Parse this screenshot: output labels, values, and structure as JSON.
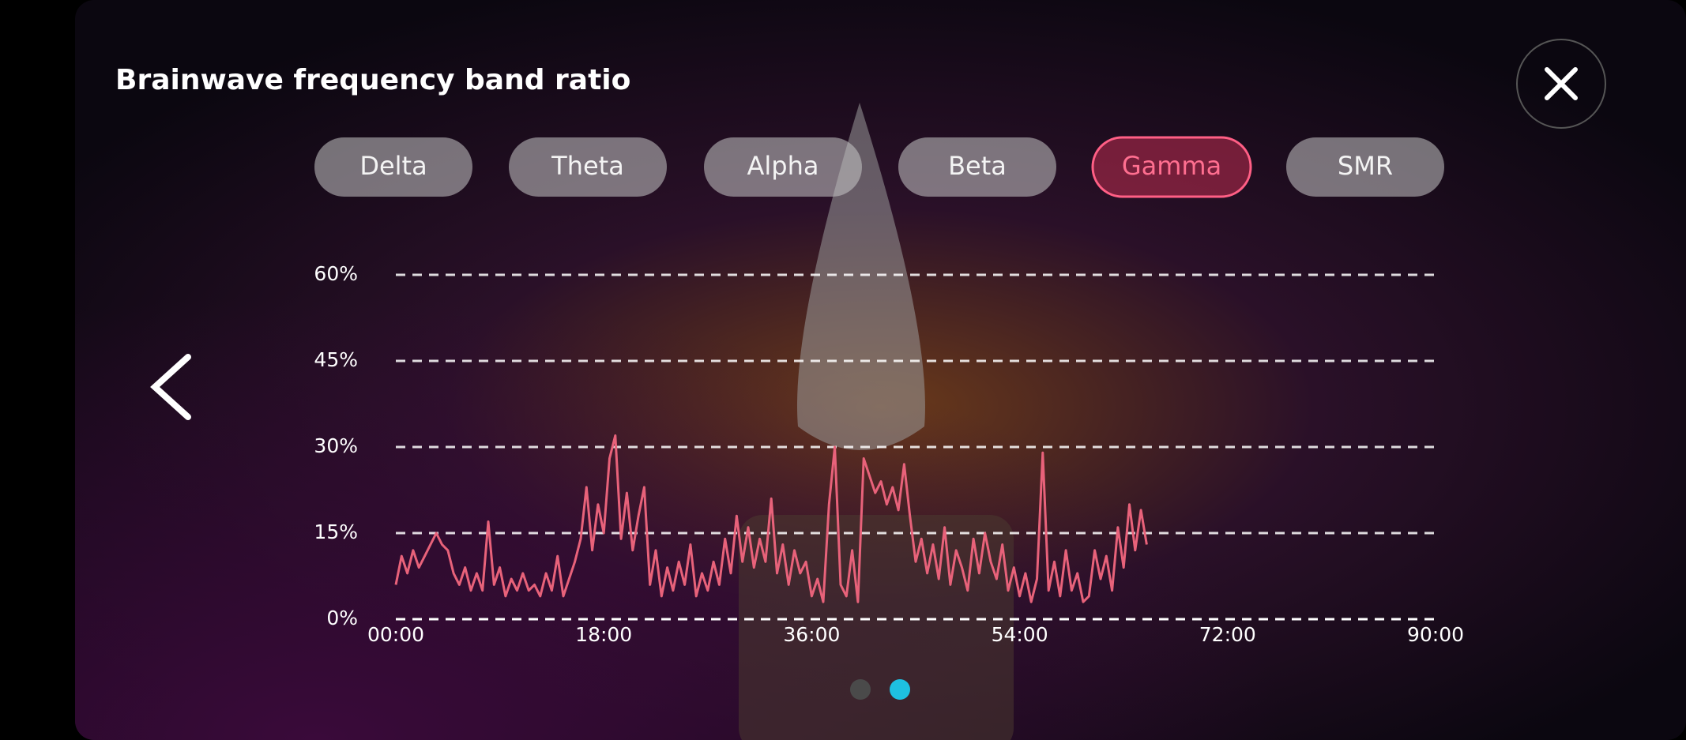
{
  "header": {
    "title": "Brainwave frequency band ratio"
  },
  "tabs": [
    {
      "label": "Delta"
    },
    {
      "label": "Theta"
    },
    {
      "label": "Alpha"
    },
    {
      "label": "Beta"
    },
    {
      "label": "Gamma",
      "selected": true
    },
    {
      "label": "SMR"
    }
  ],
  "chart_data": {
    "type": "line",
    "color": "#e8627a",
    "grid": true,
    "x": [
      0,
      0.5,
      1,
      1.5,
      2,
      2.5,
      3,
      3.5,
      4,
      4.5,
      5,
      5.5,
      6,
      6.5,
      7,
      7.5,
      8,
      8.5,
      9,
      9.5,
      10,
      10.5,
      11,
      11.5,
      12,
      12.5,
      13,
      13.5,
      14,
      14.5,
      15,
      15.5,
      16,
      16.5,
      17,
      17.5,
      18,
      18.5,
      19,
      19.5,
      20,
      20.5,
      21,
      21.5,
      22,
      22.5,
      23,
      23.5,
      24,
      24.5,
      25,
      25.5,
      26,
      26.5,
      27,
      27.5,
      28,
      28.5,
      29,
      29.5,
      30,
      30.5,
      31,
      31.5,
      32,
      32.5,
      33,
      33.5,
      34,
      34.5,
      35,
      35.5,
      36,
      36.5,
      37,
      37.5,
      38,
      38.5,
      39,
      39.5,
      40,
      40.5,
      41,
      41.5,
      42,
      42.5,
      43,
      43.5,
      44,
      44.5,
      45,
      45.5,
      46,
      46.5,
      47,
      47.5,
      48,
      48.5,
      49,
      49.5,
      50,
      50.5,
      51,
      51.5,
      52,
      52.5,
      53,
      53.5,
      54,
      54.5,
      55,
      55.5,
      56,
      56.5,
      57,
      57.5,
      58,
      58.5,
      59,
      59.5,
      60,
      60.5,
      61,
      61.5,
      62,
      62.5,
      63,
      63.5,
      64,
      64.5,
      65
    ],
    "values": [
      6,
      11,
      8,
      12,
      9,
      11,
      13,
      15,
      13,
      12,
      8,
      6,
      9,
      5,
      8,
      5,
      17,
      6,
      9,
      4,
      7,
      5,
      8,
      5,
      6,
      4,
      8,
      5,
      11,
      4,
      7,
      10,
      14,
      23,
      12,
      20,
      15,
      28,
      32,
      14,
      22,
      12,
      18,
      23,
      6,
      12,
      4,
      9,
      5,
      10,
      6,
      13,
      4,
      8,
      5,
      10,
      6,
      14,
      8,
      18,
      10,
      16,
      9,
      14,
      10,
      21,
      8,
      13,
      6,
      12,
      8,
      10,
      4,
      7,
      3,
      20,
      30,
      6,
      4,
      12,
      3,
      28,
      25,
      22,
      24,
      20,
      23,
      19,
      27,
      18,
      10,
      14,
      8,
      13,
      7,
      16,
      6,
      12,
      9,
      5,
      14,
      8,
      15,
      10,
      7,
      13,
      5,
      9,
      4,
      8,
      3,
      7,
      29,
      5,
      10,
      4,
      12,
      5,
      8,
      3,
      4,
      12,
      7,
      11,
      5,
      16,
      9,
      20,
      12,
      19,
      13
    ],
    "xlim": [
      0,
      90
    ],
    "xticks": [
      {
        "value": 0,
        "label": "00:00"
      },
      {
        "value": 18,
        "label": "18:00"
      },
      {
        "value": 36,
        "label": "36:00"
      },
      {
        "value": 54,
        "label": "54:00"
      },
      {
        "value": 72,
        "label": "72:00"
      },
      {
        "value": 90,
        "label": "90:00"
      }
    ],
    "ylim": [
      0,
      60
    ],
    "yticks": [
      {
        "value": 0,
        "label": "0%"
      },
      {
        "value": 15,
        "label": "15%"
      },
      {
        "value": 30,
        "label": "30%"
      },
      {
        "value": 45,
        "label": "45%"
      },
      {
        "value": 60,
        "label": "60%"
      }
    ]
  }
}
